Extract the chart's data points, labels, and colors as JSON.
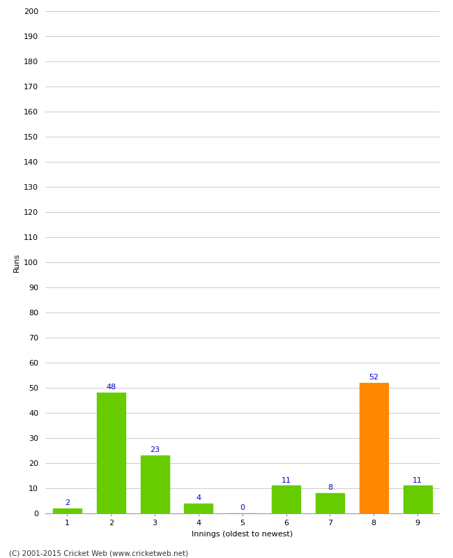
{
  "categories": [
    "1",
    "2",
    "3",
    "4",
    "5",
    "6",
    "7",
    "8",
    "9"
  ],
  "values": [
    2,
    48,
    23,
    4,
    0,
    11,
    8,
    52,
    11
  ],
  "bar_colors": [
    "#66cc00",
    "#66cc00",
    "#66cc00",
    "#66cc00",
    "#66cc00",
    "#66cc00",
    "#66cc00",
    "#ff8800",
    "#66cc00"
  ],
  "xlabel": "Innings (oldest to newest)",
  "ylabel": "Runs",
  "ylim": [
    0,
    200
  ],
  "yticks": [
    0,
    10,
    20,
    30,
    40,
    50,
    60,
    70,
    80,
    90,
    100,
    110,
    120,
    130,
    140,
    150,
    160,
    170,
    180,
    190,
    200
  ],
  "label_color": "#0000cc",
  "label_fontsize": 8,
  "axis_fontsize": 8,
  "ylabel_fontsize": 8,
  "footer": "(C) 2001-2015 Cricket Web (www.cricketweb.net)",
  "background_color": "#ffffff",
  "grid_color": "#cccccc",
  "bar_width": 0.65
}
